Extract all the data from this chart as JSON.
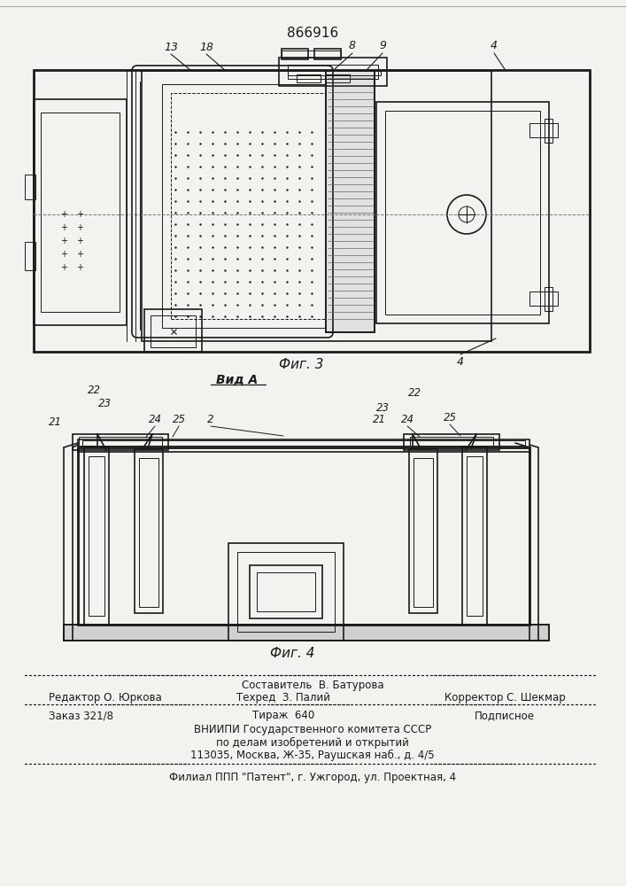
{
  "patent_number": "866916",
  "fig3_caption": "Фиг. 3",
  "fig4_caption": "Фиг. 4",
  "view_a_label": "Вид А",
  "footer_line1_center": "Составитель  В. Батурова",
  "footer_line2_left": "Редактор О. Юркова",
  "footer_line2_center": "Техред  З. Палий",
  "footer_line2_right": "Корректор С. Шекмар",
  "footer_line3_left": "Заказ 321/8",
  "footer_line3_center": "Тираж  640",
  "footer_line3_right": "Подписное",
  "footer_line4": "ВНИИПИ Государственного комитета СССР",
  "footer_line5": "по делам изобретений и открытий",
  "footer_line6": "113035, Москва, Ж-35, Раушская наб., д. 4/5",
  "footer_line7": "Филиал ППП \"Патент\", г. Ужгород, ул. Проектная, 4",
  "bg_color": "#f2f2ee",
  "line_color": "#1a1a1a"
}
